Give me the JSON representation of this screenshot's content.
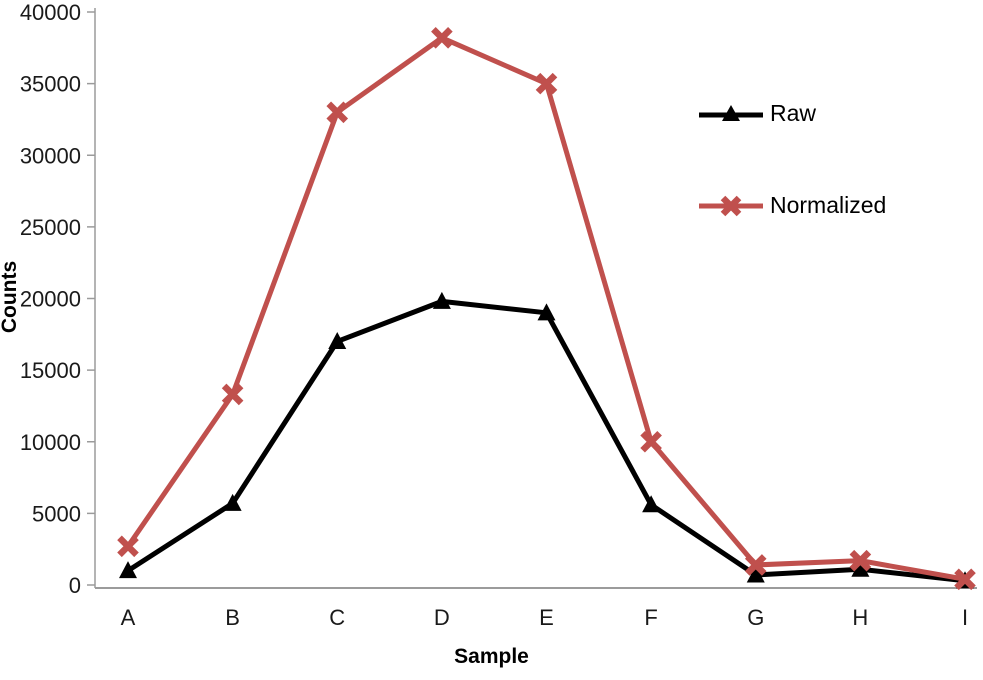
{
  "chart_data": {
    "type": "line",
    "title": "",
    "xlabel": "Sample",
    "ylabel": "Counts",
    "categories": [
      "A",
      "B",
      "C",
      "D",
      "E",
      "F",
      "G",
      "H",
      "I"
    ],
    "series": [
      {
        "name": "Raw",
        "color": "#000000",
        "marker": "triangle",
        "values": [
          1000,
          5700,
          17000,
          19800,
          19000,
          5600,
          700,
          1100,
          300
        ]
      },
      {
        "name": "Normalized",
        "color": "#c0504d",
        "marker": "x",
        "values": [
          2700,
          13300,
          33000,
          38200,
          35000,
          10000,
          1400,
          1700,
          400
        ]
      }
    ],
    "ylim": [
      0,
      40000
    ],
    "ytick_step": 5000,
    "ytick_labels": [
      "0",
      "5000",
      "10000",
      "15000",
      "20000",
      "25000",
      "30000",
      "35000",
      "40000"
    ],
    "grid": false,
    "legend_position": "upper-right",
    "axis_color": "#9b9b9b",
    "text_color": "#1a1a1a"
  }
}
